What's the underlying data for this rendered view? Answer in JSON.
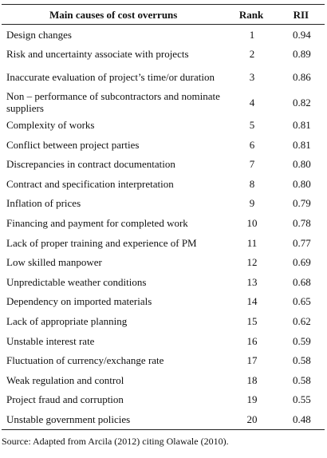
{
  "table": {
    "header": [
      "Main causes of cost overruns",
      "Rank",
      "RII"
    ],
    "rows": [
      [
        "Design changes",
        1,
        "0.94"
      ],
      [
        "Risk and uncertainty associate with projects",
        2,
        "0.89"
      ],
      [
        "Inaccurate evaluation of project’s time/or duration",
        3,
        "0.86"
      ],
      [
        "Non – performance of subcontractors and nominate suppliers",
        4,
        "0.82"
      ],
      [
        "Complexity of works",
        5,
        "0.81"
      ],
      [
        "Conflict between project parties",
        6,
        "0.81"
      ],
      [
        "Discrepancies in contract documentation",
        7,
        "0.80"
      ],
      [
        "Contract and specification interpretation",
        8,
        "0.80"
      ],
      [
        "Inflation of prices",
        9,
        "0.79"
      ],
      [
        "Financing and payment for completed work",
        10,
        "0.78"
      ],
      [
        "Lack of proper training and experience of PM",
        11,
        "0.77"
      ],
      [
        "Low skilled manpower",
        12,
        "0.69"
      ],
      [
        "Unpredictable weather conditions",
        13,
        "0.68"
      ],
      [
        "Dependency on imported materials",
        14,
        "0.65"
      ],
      [
        "Lack of appropriate planning",
        15,
        "0.62"
      ],
      [
        "Unstable interest rate",
        16,
        "0.59"
      ],
      [
        "Fluctuation of currency/exchange rate",
        17,
        "0.58"
      ],
      [
        "Weak regulation and control",
        18,
        "0.58"
      ],
      [
        "Project fraud and corruption",
        19,
        "0.55"
      ],
      [
        "Unstable government policies",
        20,
        "0.48"
      ]
    ]
  },
  "source": "Source: Adapted from Arcila (2012) citing Olawale (2010)."
}
